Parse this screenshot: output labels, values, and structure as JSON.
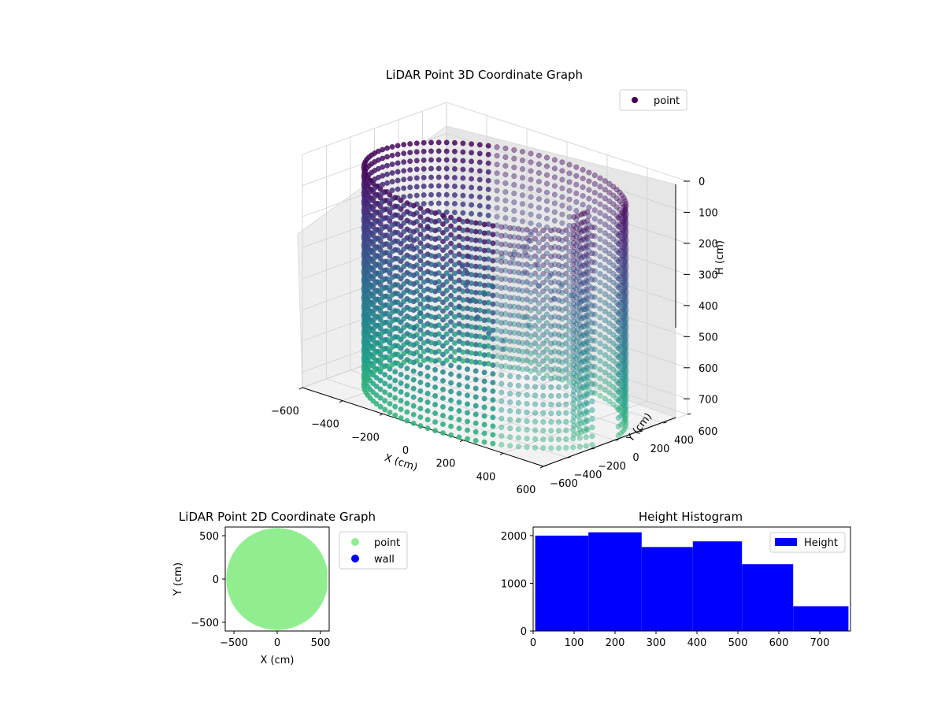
{
  "chart_data": [
    {
      "type": "scatter",
      "title": "LiDAR Point 3D Coordinate Graph",
      "xlabel": "X (cm)",
      "ylabel": "Y (cm)",
      "zlabel": "H (cm)",
      "x_ticks": [
        "−600",
        "−400",
        "−200",
        "0",
        "200",
        "400",
        "600"
      ],
      "y_ticks": [
        "−600",
        "−400",
        "−200",
        "0",
        "200",
        "400",
        "600"
      ],
      "z_ticks": [
        "0",
        "100",
        "200",
        "300",
        "400",
        "500",
        "600",
        "700"
      ],
      "xlim": [
        -600,
        600
      ],
      "ylim": [
        -600,
        600
      ],
      "zlim": [
        0,
        750
      ],
      "z_inverted": true,
      "legend": [
        "point"
      ],
      "legend_position": "upper-right",
      "colormap": "viridis",
      "series": [
        {
          "name": "point",
          "shape": "cylindrical wall of vertical scan columns, radius ~570 cm, heights 0-720 cm, with an inward notch near x 300-600, y 0-100",
          "approx_count": 9600
        }
      ]
    },
    {
      "type": "scatter",
      "title": "LiDAR Point 2D Coordinate Graph",
      "xlabel": "X (cm)",
      "ylabel": "Y (cm)",
      "x_ticks": [
        "−500",
        "0",
        "500"
      ],
      "y_ticks": [
        "500",
        "0",
        "−500"
      ],
      "xlim": [
        -600,
        600
      ],
      "ylim": [
        -600,
        600
      ],
      "legend": [
        "point",
        "wall"
      ],
      "legend_position": "outside-right",
      "series": [
        {
          "name": "point",
          "color": "#90ee90",
          "shape": "filled disc radius ~570 cm with notch at right (x 430-600, y -40 to 60)"
        },
        {
          "name": "wall",
          "color": "#0000ff",
          "points": []
        }
      ]
    },
    {
      "type": "bar",
      "title": "Height Histogram",
      "xlabel": "",
      "ylabel": "",
      "x_ticks": [
        "0",
        "100",
        "200",
        "300",
        "400",
        "500",
        "600",
        "700"
      ],
      "y_ticks": [
        "0",
        "1000",
        "2000"
      ],
      "xlim": [
        0,
        775
      ],
      "ylim": [
        0,
        2180
      ],
      "legend": [
        "Height"
      ],
      "legend_position": "upper-right",
      "bar_color": "#0000ff",
      "bins": [
        {
          "x0": 5,
          "x1": 135,
          "count": 2000
        },
        {
          "x0": 135,
          "x1": 265,
          "count": 2070
        },
        {
          "x0": 265,
          "x1": 390,
          "count": 1760
        },
        {
          "x0": 390,
          "x1": 510,
          "count": 1880
        },
        {
          "x0": 510,
          "x1": 635,
          "count": 1400
        },
        {
          "x0": 635,
          "x1": 770,
          "count": 520
        }
      ]
    }
  ]
}
